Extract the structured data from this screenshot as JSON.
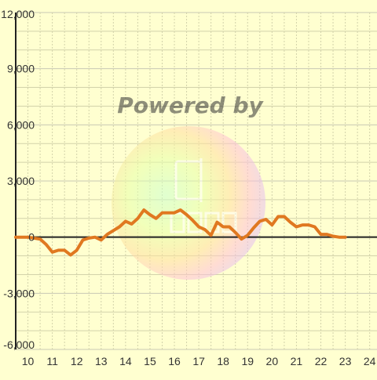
{
  "colors": {
    "background": "#ffffd0",
    "grid_major": "#c8c8b4",
    "grid_minor": "#d2d2aa",
    "axis": "#222222",
    "tick_label": "#333333",
    "series_line": "#e07820"
  },
  "watermark": {
    "text": "Powered by",
    "logo_icon": "rainbow-circle-logo"
  },
  "chart_data": {
    "type": "line",
    "title": "",
    "xlabel": "",
    "ylabel": "",
    "xlim": [
      9.5,
      24.3
    ],
    "ylim": [
      -6000,
      12000
    ],
    "grid": true,
    "x_ticks": [
      10,
      11,
      12,
      13,
      14,
      15,
      16,
      17,
      18,
      19,
      20,
      21,
      22,
      23,
      24
    ],
    "x_tick_labels": [
      "10",
      "11",
      "12",
      "13",
      "14",
      "15",
      "16",
      "17",
      "18",
      "19",
      "20",
      "21",
      "22",
      "23",
      "24"
    ],
    "y_ticks": [
      -6000,
      -3000,
      0,
      3000,
      6000,
      9000,
      12000
    ],
    "y_tick_labels": [
      "-6,000",
      "-3,000",
      "0",
      "3,000",
      "6,000",
      "9,000",
      "12,000"
    ],
    "series": [
      {
        "points": [
          [
            9.5,
            0
          ],
          [
            10.0,
            0
          ],
          [
            10.5,
            -100
          ],
          [
            10.75,
            -400
          ],
          [
            11.0,
            -800
          ],
          [
            11.25,
            -700
          ],
          [
            11.5,
            -700
          ],
          [
            11.75,
            -950
          ],
          [
            12.0,
            -700
          ],
          [
            12.25,
            -150
          ],
          [
            12.5,
            -50
          ],
          [
            12.75,
            0
          ],
          [
            13.0,
            -150
          ],
          [
            13.25,
            150
          ],
          [
            13.5,
            350
          ],
          [
            13.75,
            550
          ],
          [
            14.0,
            850
          ],
          [
            14.25,
            700
          ],
          [
            14.5,
            1000
          ],
          [
            14.75,
            1450
          ],
          [
            15.0,
            1200
          ],
          [
            15.25,
            1000
          ],
          [
            15.5,
            1300
          ],
          [
            15.75,
            1300
          ],
          [
            16.0,
            1300
          ],
          [
            16.25,
            1450
          ],
          [
            16.5,
            1200
          ],
          [
            16.75,
            900
          ],
          [
            17.0,
            550
          ],
          [
            17.25,
            400
          ],
          [
            17.5,
            100
          ],
          [
            17.75,
            800
          ],
          [
            18.0,
            550
          ],
          [
            18.25,
            550
          ],
          [
            18.5,
            250
          ],
          [
            18.75,
            -100
          ],
          [
            19.0,
            100
          ],
          [
            19.25,
            500
          ],
          [
            19.5,
            850
          ],
          [
            19.75,
            950
          ],
          [
            20.0,
            650
          ],
          [
            20.25,
            1100
          ],
          [
            20.5,
            1100
          ],
          [
            20.75,
            800
          ],
          [
            21.0,
            550
          ],
          [
            21.25,
            650
          ],
          [
            21.5,
            650
          ],
          [
            21.75,
            550
          ],
          [
            22.0,
            150
          ],
          [
            22.25,
            150
          ],
          [
            22.5,
            50
          ],
          [
            22.75,
            0
          ],
          [
            23.0,
            0
          ]
        ]
      }
    ]
  }
}
